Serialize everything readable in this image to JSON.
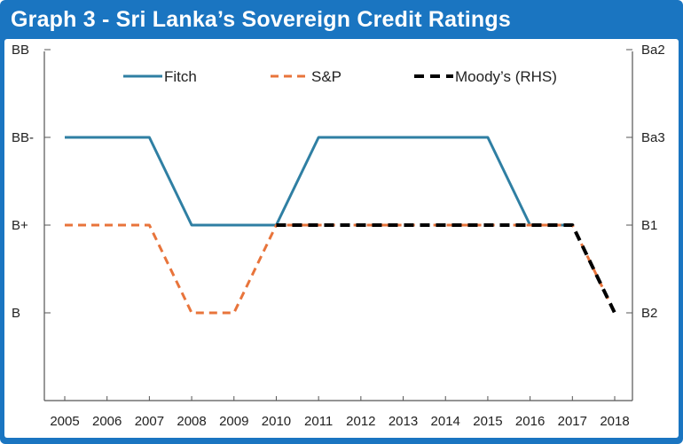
{
  "title": "Graph 3 - Sri Lanka’s Sovereign Credit Ratings",
  "colors": {
    "frame": "#1a75c1",
    "fitch": "#2f7fa3",
    "sp": "#e8743b",
    "moodys": "#000000",
    "axis": "#555555"
  },
  "chart_data": {
    "type": "line",
    "title": "Graph 3 - Sri Lanka’s Sovereign Credit Ratings",
    "x_ticks": [
      "2005",
      "2006",
      "2007",
      "2008",
      "2009",
      "2010",
      "2011",
      "2012",
      "2013",
      "2014",
      "2015",
      "2016",
      "2017",
      "2018"
    ],
    "xlim": [
      2005,
      2018
    ],
    "y_left": {
      "ticks": [
        {
          "label": "BB",
          "level": 4
        },
        {
          "label": "BB-",
          "level": 3
        },
        {
          "label": "B+",
          "level": 2
        },
        {
          "label": "B",
          "level": 1
        }
      ],
      "ylim": [
        0,
        4
      ]
    },
    "y_right": {
      "ticks": [
        {
          "label": "Ba2",
          "level": 4
        },
        {
          "label": "Ba3",
          "level": 3
        },
        {
          "label": "B1",
          "level": 2
        },
        {
          "label": "B2",
          "level": 1
        }
      ],
      "ylim": [
        0,
        4
      ]
    },
    "legend_position": "top",
    "grid": false,
    "series": [
      {
        "name": "Fitch",
        "style": "solid",
        "color_key": "fitch",
        "x": [
          2005,
          2007,
          2008,
          2010,
          2011,
          2015,
          2016,
          2017
        ],
        "y": [
          3,
          3,
          2,
          2,
          3,
          3,
          2,
          2
        ]
      },
      {
        "name": "S&P",
        "style": "dashed",
        "color_key": "sp",
        "x": [
          2005,
          2007,
          2008,
          2009,
          2010,
          2017,
          2018
        ],
        "y": [
          2,
          2,
          1,
          1,
          2,
          2,
          1
        ]
      },
      {
        "name": "Moody’s (RHS)",
        "style": "dashed-bold",
        "color_key": "moodys",
        "axis": "right",
        "x": [
          2010,
          2017,
          2018
        ],
        "y": [
          2,
          2,
          1
        ]
      }
    ]
  }
}
